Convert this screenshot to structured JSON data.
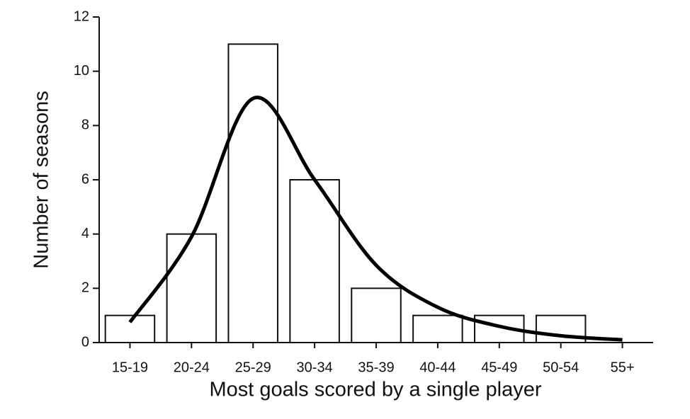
{
  "chart_data": {
    "type": "bar",
    "x_label": "Most goals scored by a single player",
    "y_label": "Number of seasons",
    "categories": [
      "15-19",
      "20-24",
      "25-29",
      "30-34",
      "35-39",
      "40-44",
      "45-49",
      "50-54",
      "55+"
    ],
    "series": [
      {
        "type": "bar",
        "color": "#ffffff",
        "values": [
          1,
          4,
          11,
          6,
          2,
          1,
          1,
          1,
          0
        ]
      },
      {
        "type": "line",
        "color": "#000000",
        "values": [
          0.75,
          3.9,
          9.0,
          6.0,
          2.85,
          1.3,
          0.6,
          0.25,
          0.1
        ]
      }
    ],
    "ylim": [
      0,
      12
    ],
    "yticks": [
      0,
      2,
      4,
      6,
      8,
      10,
      12
    ]
  }
}
